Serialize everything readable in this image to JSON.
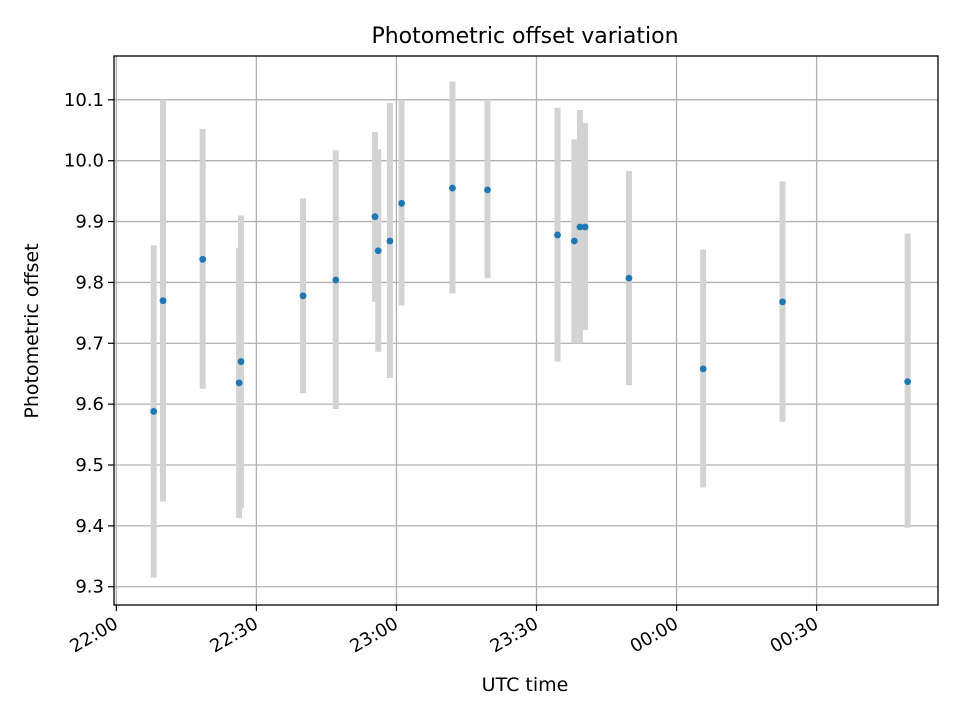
{
  "chart_data": {
    "type": "scatter",
    "title": "Photometric offset variation",
    "xlabel": "UTC time",
    "ylabel": "Photometric offset",
    "x_unit": "minutes after 22:00 UTC",
    "xlim": [
      -0.5,
      176
    ],
    "ylim": [
      9.27,
      10.172
    ],
    "grid": true,
    "x_ticks": [
      {
        "value": 0,
        "label": "22:00"
      },
      {
        "value": 30,
        "label": "22:30"
      },
      {
        "value": 60,
        "label": "23:00"
      },
      {
        "value": 90,
        "label": "23:30"
      },
      {
        "value": 120,
        "label": "00:00"
      },
      {
        "value": 150,
        "label": "00:30"
      }
    ],
    "y_ticks": [
      {
        "value": 9.3,
        "label": "9.3"
      },
      {
        "value": 9.4,
        "label": "9.4"
      },
      {
        "value": 9.5,
        "label": "9.5"
      },
      {
        "value": 9.6,
        "label": "9.6"
      },
      {
        "value": 9.7,
        "label": "9.7"
      },
      {
        "value": 9.8,
        "label": "9.8"
      },
      {
        "value": 9.9,
        "label": "9.9"
      },
      {
        "value": 10.0,
        "label": "10.0"
      },
      {
        "value": 10.1,
        "label": "10.1"
      }
    ],
    "colors": {
      "point": "#1f77b4",
      "errorbar": "#d3d3d3",
      "grid": "#b0b0b0",
      "axes": "#000000"
    },
    "points": [
      {
        "x": 8.0,
        "y": 9.588,
        "yerr_low": 9.315,
        "yerr_high": 9.861
      },
      {
        "x": 10.0,
        "y": 9.77,
        "yerr_low": 9.44,
        "yerr_high": 10.1
      },
      {
        "x": 18.5,
        "y": 9.838,
        "yerr_low": 9.625,
        "yerr_high": 10.052
      },
      {
        "x": 26.3,
        "y": 9.635,
        "yerr_low": 9.413,
        "yerr_high": 9.857
      },
      {
        "x": 26.7,
        "y": 9.67,
        "yerr_low": 9.43,
        "yerr_high": 9.91
      },
      {
        "x": 40.0,
        "y": 9.778,
        "yerr_low": 9.618,
        "yerr_high": 9.938
      },
      {
        "x": 47.0,
        "y": 9.804,
        "yerr_low": 9.592,
        "yerr_high": 10.017
      },
      {
        "x": 55.4,
        "y": 9.908,
        "yerr_low": 9.768,
        "yerr_high": 10.047
      },
      {
        "x": 56.1,
        "y": 9.852,
        "yerr_low": 9.686,
        "yerr_high": 10.019
      },
      {
        "x": 58.6,
        "y": 9.868,
        "yerr_low": 9.643,
        "yerr_high": 10.095
      },
      {
        "x": 61.1,
        "y": 9.93,
        "yerr_low": 9.762,
        "yerr_high": 10.1
      },
      {
        "x": 72.0,
        "y": 9.955,
        "yerr_low": 9.782,
        "yerr_high": 10.13
      },
      {
        "x": 79.5,
        "y": 9.952,
        "yerr_low": 9.807,
        "yerr_high": 10.098
      },
      {
        "x": 94.5,
        "y": 9.878,
        "yerr_low": 9.67,
        "yerr_high": 10.087
      },
      {
        "x": 98.1,
        "y": 9.868,
        "yerr_low": 9.7,
        "yerr_high": 10.035
      },
      {
        "x": 99.3,
        "y": 9.891,
        "yerr_low": 9.7,
        "yerr_high": 10.083
      },
      {
        "x": 100.4,
        "y": 9.891,
        "yerr_low": 9.722,
        "yerr_high": 10.062
      },
      {
        "x": 109.8,
        "y": 9.807,
        "yerr_low": 9.631,
        "yerr_high": 9.983
      },
      {
        "x": 125.7,
        "y": 9.658,
        "yerr_low": 9.463,
        "yerr_high": 9.854
      },
      {
        "x": 142.7,
        "y": 9.768,
        "yerr_low": 9.571,
        "yerr_high": 9.966
      },
      {
        "x": 169.5,
        "y": 9.637,
        "yerr_low": 9.397,
        "yerr_high": 9.88
      }
    ]
  }
}
